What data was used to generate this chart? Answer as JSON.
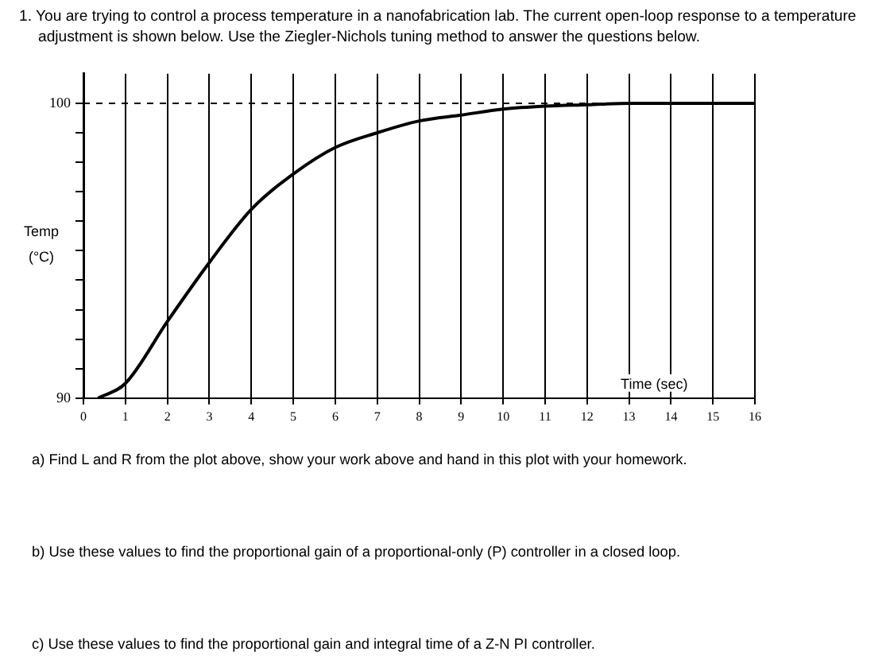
{
  "chart_data": {
    "type": "line",
    "title": "1. You are trying to control a process temperature in a nanofabrication lab.  The current open-loop response to a temperature adjustment is shown below.   Use the Ziegler-Nichols tuning method to answer the questions below.",
    "xlabel": "Time (sec)",
    "ylabel": "Temp (°C)",
    "series": [
      {
        "color": "#000000",
        "x": [
          0.35,
          1,
          2,
          3,
          4,
          5,
          6,
          7,
          8,
          9,
          10,
          11,
          12,
          13,
          14,
          15,
          16
        ],
        "values": [
          90,
          90.5,
          92.6,
          94.6,
          96.4,
          97.6,
          98.5,
          99,
          99.4,
          99.6,
          99.8,
          99.9,
          99.95,
          100,
          100,
          100,
          100
        ]
      }
    ],
    "xlim": [
      0,
      16
    ],
    "xticks": [
      0,
      1,
      2,
      3,
      4,
      5,
      6,
      7,
      8,
      9,
      10,
      11,
      12,
      13,
      14,
      15,
      16
    ],
    "ylim": [
      90,
      101
    ],
    "yticks": [
      90,
      {
        "value": 91,
        "label": null
      },
      {
        "value": 92,
        "label": null
      },
      {
        "value": 93,
        "label": null
      },
      {
        "value": 94,
        "label": null
      },
      {
        "value": 95,
        "label": null
      },
      {
        "value": 96,
        "label": null
      },
      {
        "value": 97,
        "label": null
      },
      {
        "value": 98,
        "label": null
      },
      {
        "value": 99,
        "label": null
      },
      100
    ],
    "grid": "x",
    "legend": false,
    "marker": "none",
    "line_style": "solid",
    "ref_lines": [
      {
        "axis": "y",
        "value": 100,
        "line_style": "dashed",
        "color": "#000000"
      }
    ],
    "annotations": [
      "a) Find L and R from the plot above, show your work above and hand in this plot with your homework.",
      "b) Use these values to find the proportional gain of a proportional-only (P) controller in a closed loop.",
      "c) Use these values to find the proportional gain and integral time of a Z-N PI controller."
    ]
  }
}
